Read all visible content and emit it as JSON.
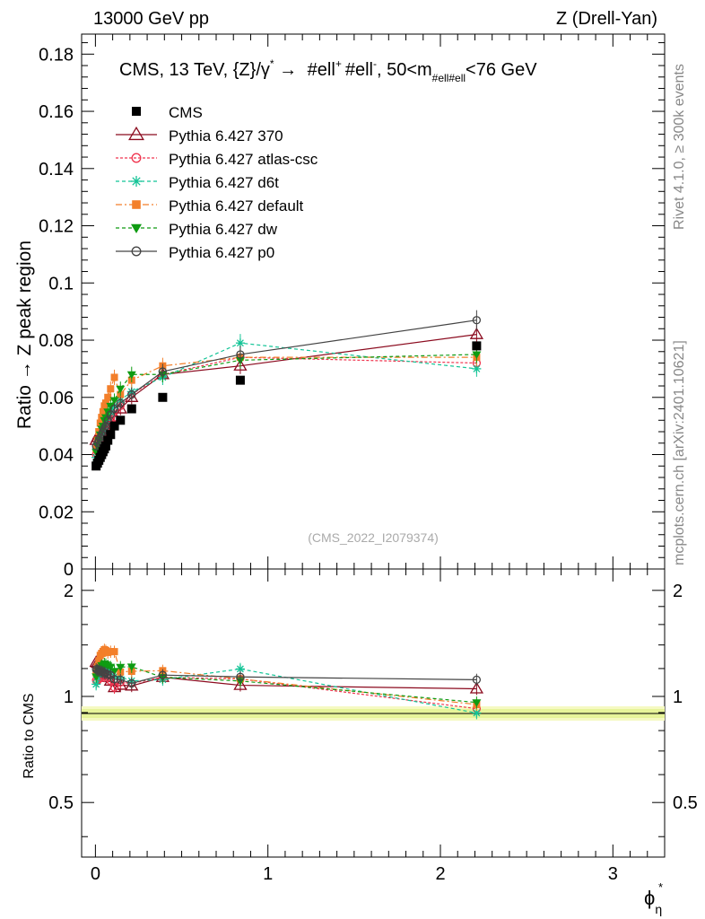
{
  "header": {
    "left": "13000 GeV pp",
    "right": "Z (Drell-Yan)"
  },
  "side_labels": {
    "rivet": "Rivet 4.1.0, ≥ 300k events",
    "mcplots": "mcplots.cern.ch [arXiv:2401.10621]"
  },
  "chart_data": {
    "type": "scatter",
    "title_parts": {
      "main": "CMS, 13 TeV, {Z}/γ",
      "arrow": " → ",
      "lep1": "#ell",
      "lep2": "#ell",
      "range_a": ", 50<m",
      "sub": "#ell#ell",
      "range_b": "<76 GeV"
    },
    "watermark": "(CMS_2022_I2079374)",
    "xlabel": "ϕ",
    "xlabel_sub": "η",
    "ylabel_main": "Ratio → Z peak region",
    "ylabel_ratio": "Ratio to CMS",
    "xlim": [
      -0.08,
      3.3
    ],
    "ylim_main": [
      0,
      0.187
    ],
    "ylim_ratio": [
      0.35,
      2.3
    ],
    "x_ticks": [
      0,
      1,
      2,
      3
    ],
    "x_tick_labels": [
      "0",
      "1",
      "2",
      "3"
    ],
    "y_ticks_main": [
      0,
      0.02,
      0.04,
      0.06,
      0.08,
      0.1,
      0.12,
      0.14,
      0.16,
      0.18
    ],
    "y_tick_labels_main": [
      "0",
      "0.02",
      "0.04",
      "0.06",
      "0.08",
      "0.1",
      "0.12",
      "0.14",
      "0.16",
      "0.18"
    ],
    "y_ticks_ratio": [
      0.5,
      1,
      2
    ],
    "y_tick_labels_ratio": [
      "0.5",
      "1",
      "2"
    ],
    "x": [
      0.004,
      0.012,
      0.02,
      0.028,
      0.036,
      0.044,
      0.052,
      0.06,
      0.072,
      0.088,
      0.11,
      0.145,
      0.21,
      0.39,
      0.84,
      2.21
    ],
    "data": {
      "name": "CMS",
      "values": [
        0.036,
        0.037,
        0.038,
        0.039,
        0.04,
        0.041,
        0.042,
        0.043,
        0.045,
        0.047,
        0.05,
        0.052,
        0.056,
        0.06,
        0.066,
        0.078
      ]
    },
    "series": [
      {
        "name": "Pythia 6.427 370",
        "color": "#8b0a1e",
        "dash": "",
        "marker": "triangle-open",
        "values": [
          0.045,
          0.046,
          0.047,
          0.047,
          0.048,
          0.049,
          0.05,
          0.05,
          0.051,
          0.052,
          0.053,
          0.056,
          0.06,
          0.068,
          0.071,
          0.082
        ]
      },
      {
        "name": "Pythia 6.427 atlas-csc",
        "color": "#f0354f",
        "dash": "3,2",
        "marker": "circle-open",
        "values": [
          0.04,
          0.041,
          0.043,
          0.044,
          0.046,
          0.047,
          0.048,
          0.05,
          0.051,
          0.052,
          0.053,
          0.057,
          0.061,
          0.068,
          0.074,
          0.072
        ]
      },
      {
        "name": "Pythia 6.427 d6t",
        "color": "#12c496",
        "dash": "4,3",
        "marker": "star",
        "values": [
          0.039,
          0.042,
          0.044,
          0.046,
          0.048,
          0.049,
          0.051,
          0.052,
          0.054,
          0.055,
          0.057,
          0.059,
          0.062,
          0.067,
          0.079,
          0.07
        ]
      },
      {
        "name": "Pythia 6.427 default",
        "color": "#f37f2a",
        "dash": "7,3,2,3",
        "marker": "square",
        "values": [
          0.042,
          0.045,
          0.048,
          0.051,
          0.053,
          0.055,
          0.057,
          0.058,
          0.06,
          0.063,
          0.067,
          0.061,
          0.066,
          0.071,
          0.074,
          0.074
        ]
      },
      {
        "name": "Pythia 6.427 dw",
        "color": "#0e9b12",
        "dash": "4,3",
        "marker": "triangle-down",
        "values": [
          0.041,
          0.043,
          0.045,
          0.047,
          0.049,
          0.05,
          0.052,
          0.053,
          0.055,
          0.057,
          0.059,
          0.063,
          0.068,
          0.068,
          0.073,
          0.075
        ]
      },
      {
        "name": "Pythia 6.427 p0",
        "color": "#444444",
        "dash": "",
        "marker": "circle-open",
        "values": [
          0.043,
          0.044,
          0.045,
          0.046,
          0.047,
          0.048,
          0.049,
          0.05,
          0.052,
          0.054,
          0.056,
          0.058,
          0.061,
          0.069,
          0.075,
          0.087
        ]
      }
    ]
  }
}
